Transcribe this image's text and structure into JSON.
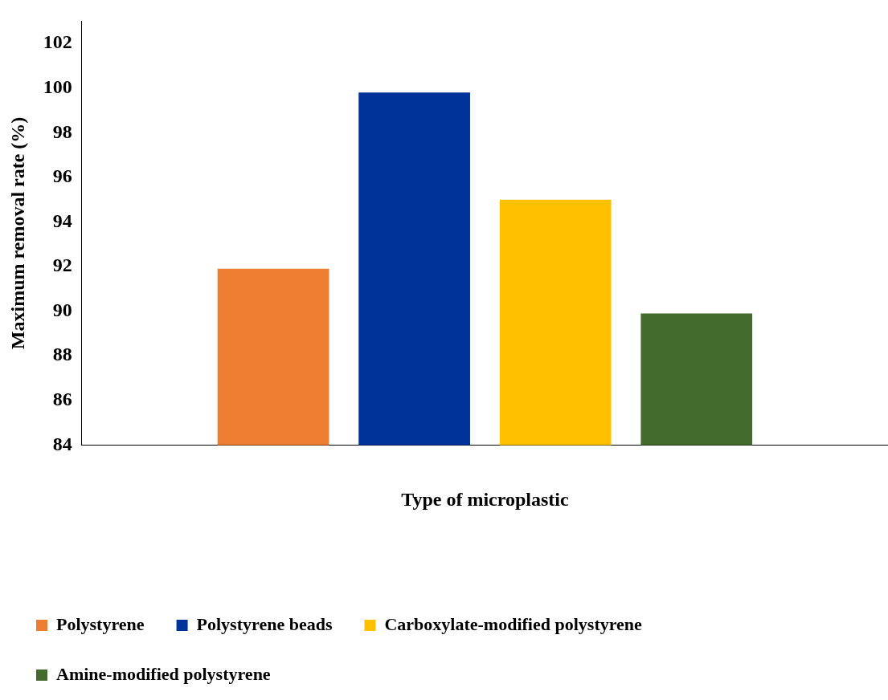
{
  "chart_data": {
    "type": "bar",
    "xlabel": "Type of microplastic",
    "ylabel": "Maximum removal rate (%)",
    "categories": [
      null
    ],
    "series": [
      {
        "name": "Polystyrene",
        "color": "#ed7d31",
        "values": [
          91.9
        ]
      },
      {
        "name": "Polystyrene beads",
        "color": "#003399",
        "values": [
          99.8
        ]
      },
      {
        "name": "Carboxylate-modified polystyrene",
        "color": "#ffc000",
        "values": [
          95.0
        ]
      },
      {
        "name": "Amine-modified polystyrene",
        "color": "#436b2d",
        "values": [
          89.9
        ]
      }
    ],
    "ylim": [
      84,
      103
    ],
    "yticks": [
      84,
      86,
      88,
      90,
      92,
      94,
      96,
      98,
      100,
      102
    ],
    "grid": false,
    "legend": "bottom"
  }
}
